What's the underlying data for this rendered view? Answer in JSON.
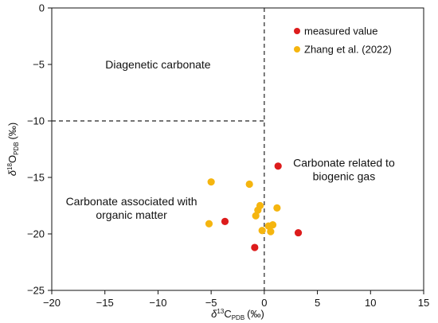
{
  "chart_data": {
    "type": "scatter",
    "xlabel": {
      "symbol": "δ",
      "sup": "13",
      "element": "C",
      "sub": "PDB",
      "unit": "(‰)"
    },
    "ylabel": {
      "symbol": "δ",
      "sup": "18",
      "element": "O",
      "sub": "PDB",
      "unit": "(‰)"
    },
    "xlim": [
      -20,
      15
    ],
    "ylim": [
      -25,
      0
    ],
    "xticks": [
      -20,
      -15,
      -10,
      -5,
      0,
      5,
      10,
      15
    ],
    "yticks": [
      0,
      -5,
      -10,
      -15,
      -20,
      -25
    ],
    "grid": false,
    "legend_position": "top-right",
    "series": [
      {
        "name": "measured value",
        "color": "#dd1c1c",
        "points": [
          {
            "x": 1.3,
            "y": -14.0
          },
          {
            "x": -3.7,
            "y": -18.9
          },
          {
            "x": 3.2,
            "y": -19.9
          },
          {
            "x": -0.9,
            "y": -21.2
          }
        ]
      },
      {
        "name": "Zhang et al. (2022)",
        "color": "#f5b50f",
        "points": [
          {
            "x": -5.0,
            "y": -15.4
          },
          {
            "x": -1.4,
            "y": -15.6
          },
          {
            "x": -5.2,
            "y": -19.1
          },
          {
            "x": -0.4,
            "y": -17.5
          },
          {
            "x": -0.6,
            "y": -17.9
          },
          {
            "x": -0.8,
            "y": -18.4
          },
          {
            "x": 1.2,
            "y": -17.7
          },
          {
            "x": -0.2,
            "y": -19.7
          },
          {
            "x": 0.4,
            "y": -19.3
          },
          {
            "x": 0.8,
            "y": -19.2
          },
          {
            "x": 0.6,
            "y": -19.8
          }
        ]
      }
    ],
    "dividers": [
      {
        "type": "vertical",
        "x": 0,
        "y_range": [
          -25,
          0
        ],
        "style": "dashed"
      },
      {
        "type": "horizontal",
        "y": -10,
        "x_range": [
          -20,
          0
        ],
        "style": "dashed"
      }
    ],
    "annotations": [
      {
        "lines": [
          "Diagenetic carbonate"
        ],
        "x": -10,
        "y": -5
      },
      {
        "lines": [
          "Carbonate related to",
          "biogenic gas"
        ],
        "x": 7.5,
        "y": -14.3
      },
      {
        "lines": [
          "Carbonate associated with",
          "organic matter"
        ],
        "x": -12.5,
        "y": -17.7
      }
    ]
  }
}
